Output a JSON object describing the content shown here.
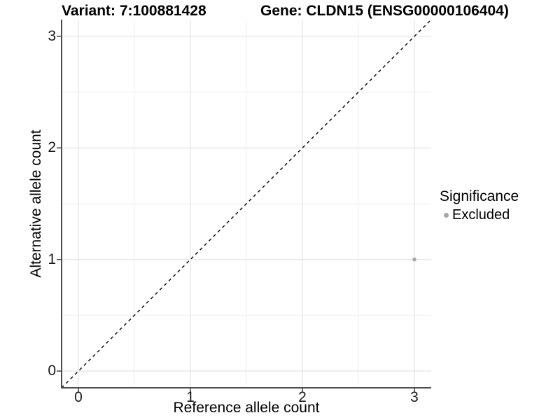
{
  "chart_data": {
    "type": "scatter",
    "title_left": "Variant: 7:100881428",
    "title_right": "Gene: CLDN15 (ENSG00000106404)",
    "xlabel": "Reference allele count",
    "ylabel": "Alternative allele count",
    "xlim": [
      -0.15,
      3.15
    ],
    "ylim": [
      -0.15,
      3.15
    ],
    "xticks": [
      0,
      1,
      2,
      3
    ],
    "yticks": [
      0,
      1,
      2,
      3
    ],
    "xticks_minor": [
      0.5,
      1.5,
      2.5
    ],
    "yticks_minor": [
      0.5,
      1.5,
      2.5
    ],
    "grid": true,
    "background": "#ffffff",
    "identity_line": {
      "style": "dashed",
      "color": "#000000",
      "from": [
        -0.15,
        -0.15
      ],
      "to": [
        3.15,
        3.15
      ]
    },
    "series": [
      {
        "name": "Excluded",
        "color": "#a6a6a6",
        "points": [
          {
            "x": 3,
            "y": 1
          }
        ]
      }
    ],
    "legend": {
      "title": "Significance",
      "position": "right",
      "items": [
        {
          "label": "Excluded",
          "color": "#a6a6a6"
        }
      ]
    },
    "colors": {
      "grid_major": "#e6e6e6",
      "grid_minor": "#f2f2f2",
      "axis_line": "#4d4d4d",
      "tick_mark": "#4d4d4d",
      "tick_text": "#1a1a1a"
    }
  }
}
